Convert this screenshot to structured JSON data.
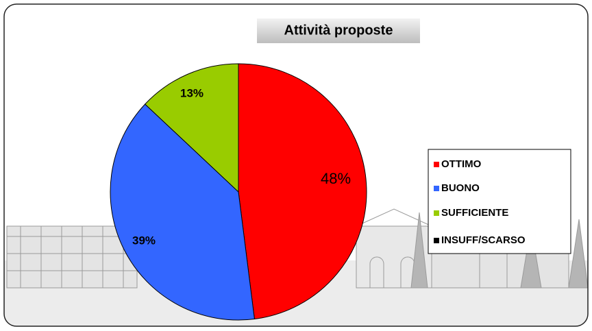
{
  "chart_data": {
    "type": "pie",
    "title": "Attività proposte",
    "categories": [
      "OTTIMO",
      "BUONO",
      "SUFFICIENTE",
      "INSUFF/SCARSO"
    ],
    "values": [
      48,
      39,
      13,
      0
    ],
    "value_labels": [
      "48%",
      "39%",
      "13%",
      null
    ],
    "colors": [
      "#ff0000",
      "#3366ff",
      "#99cc00",
      "#000000"
    ],
    "legend": "right"
  }
}
